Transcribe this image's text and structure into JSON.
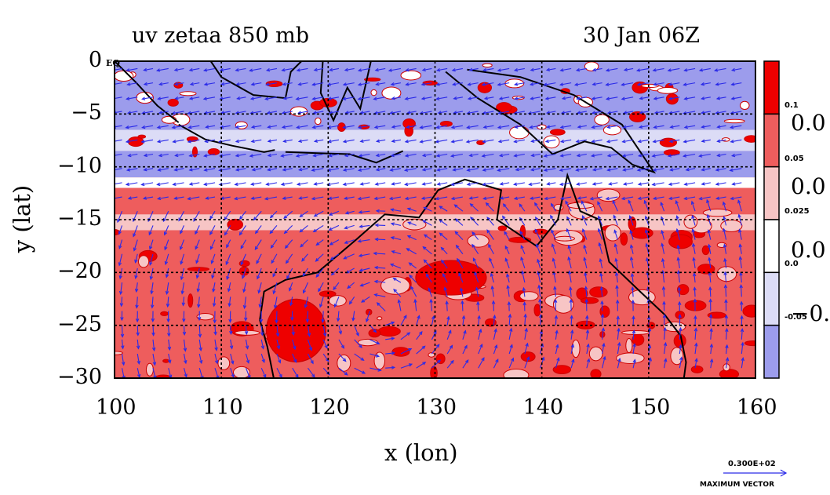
{
  "chart_data": {
    "type": "heatmap",
    "title_left": "uv zetaa 850 mb",
    "title_right": "30 Jan 06Z",
    "xlabel": "x (lon)",
    "ylabel": "y (lat)",
    "xlim": [
      100,
      160
    ],
    "ylim": [
      -30,
      0
    ],
    "x_ticks": [
      "100",
      "110",
      "120",
      "130",
      "140",
      "150",
      "160"
    ],
    "y_ticks": [
      "0",
      "−5",
      "−10",
      "−15",
      "−20",
      "−25",
      "−30"
    ],
    "y_tick_values": [
      0,
      -5,
      -10,
      -15,
      -20,
      -25,
      -30
    ],
    "x_tick_values": [
      100,
      110,
      120,
      130,
      140,
      150,
      160
    ],
    "corner_label": "EQ",
    "grid": true,
    "colorbar": {
      "labels": [
        "0.1",
        "0.05",
        "0.025",
        "0.0",
        "-0.05"
      ],
      "label_values": [
        0.1,
        0.05,
        0.025,
        0.0,
        -0.05
      ],
      "big_labels": [
        "0.0",
        "0.0",
        "0.0",
        "−0."
      ],
      "colors": [
        "#ee0000",
        "#ee5d5d",
        "#f7c5c5",
        "#ffffff",
        "#dcdcf6",
        "#9c9cec"
      ]
    },
    "vector_legend": {
      "value": "0.300E+02",
      "label": "MAXIMUM VECTOR"
    }
  },
  "colors": {
    "strong_positive": "#ee0000",
    "positive": "#ee5d5d",
    "weak_positive": "#f7c5c5",
    "neutral": "#ffffff",
    "weak_negative": "#dcdcf6",
    "negative": "#9c9cec",
    "vector": "#2a2ae8",
    "contour": "#cc0000",
    "coast": "#000000"
  }
}
